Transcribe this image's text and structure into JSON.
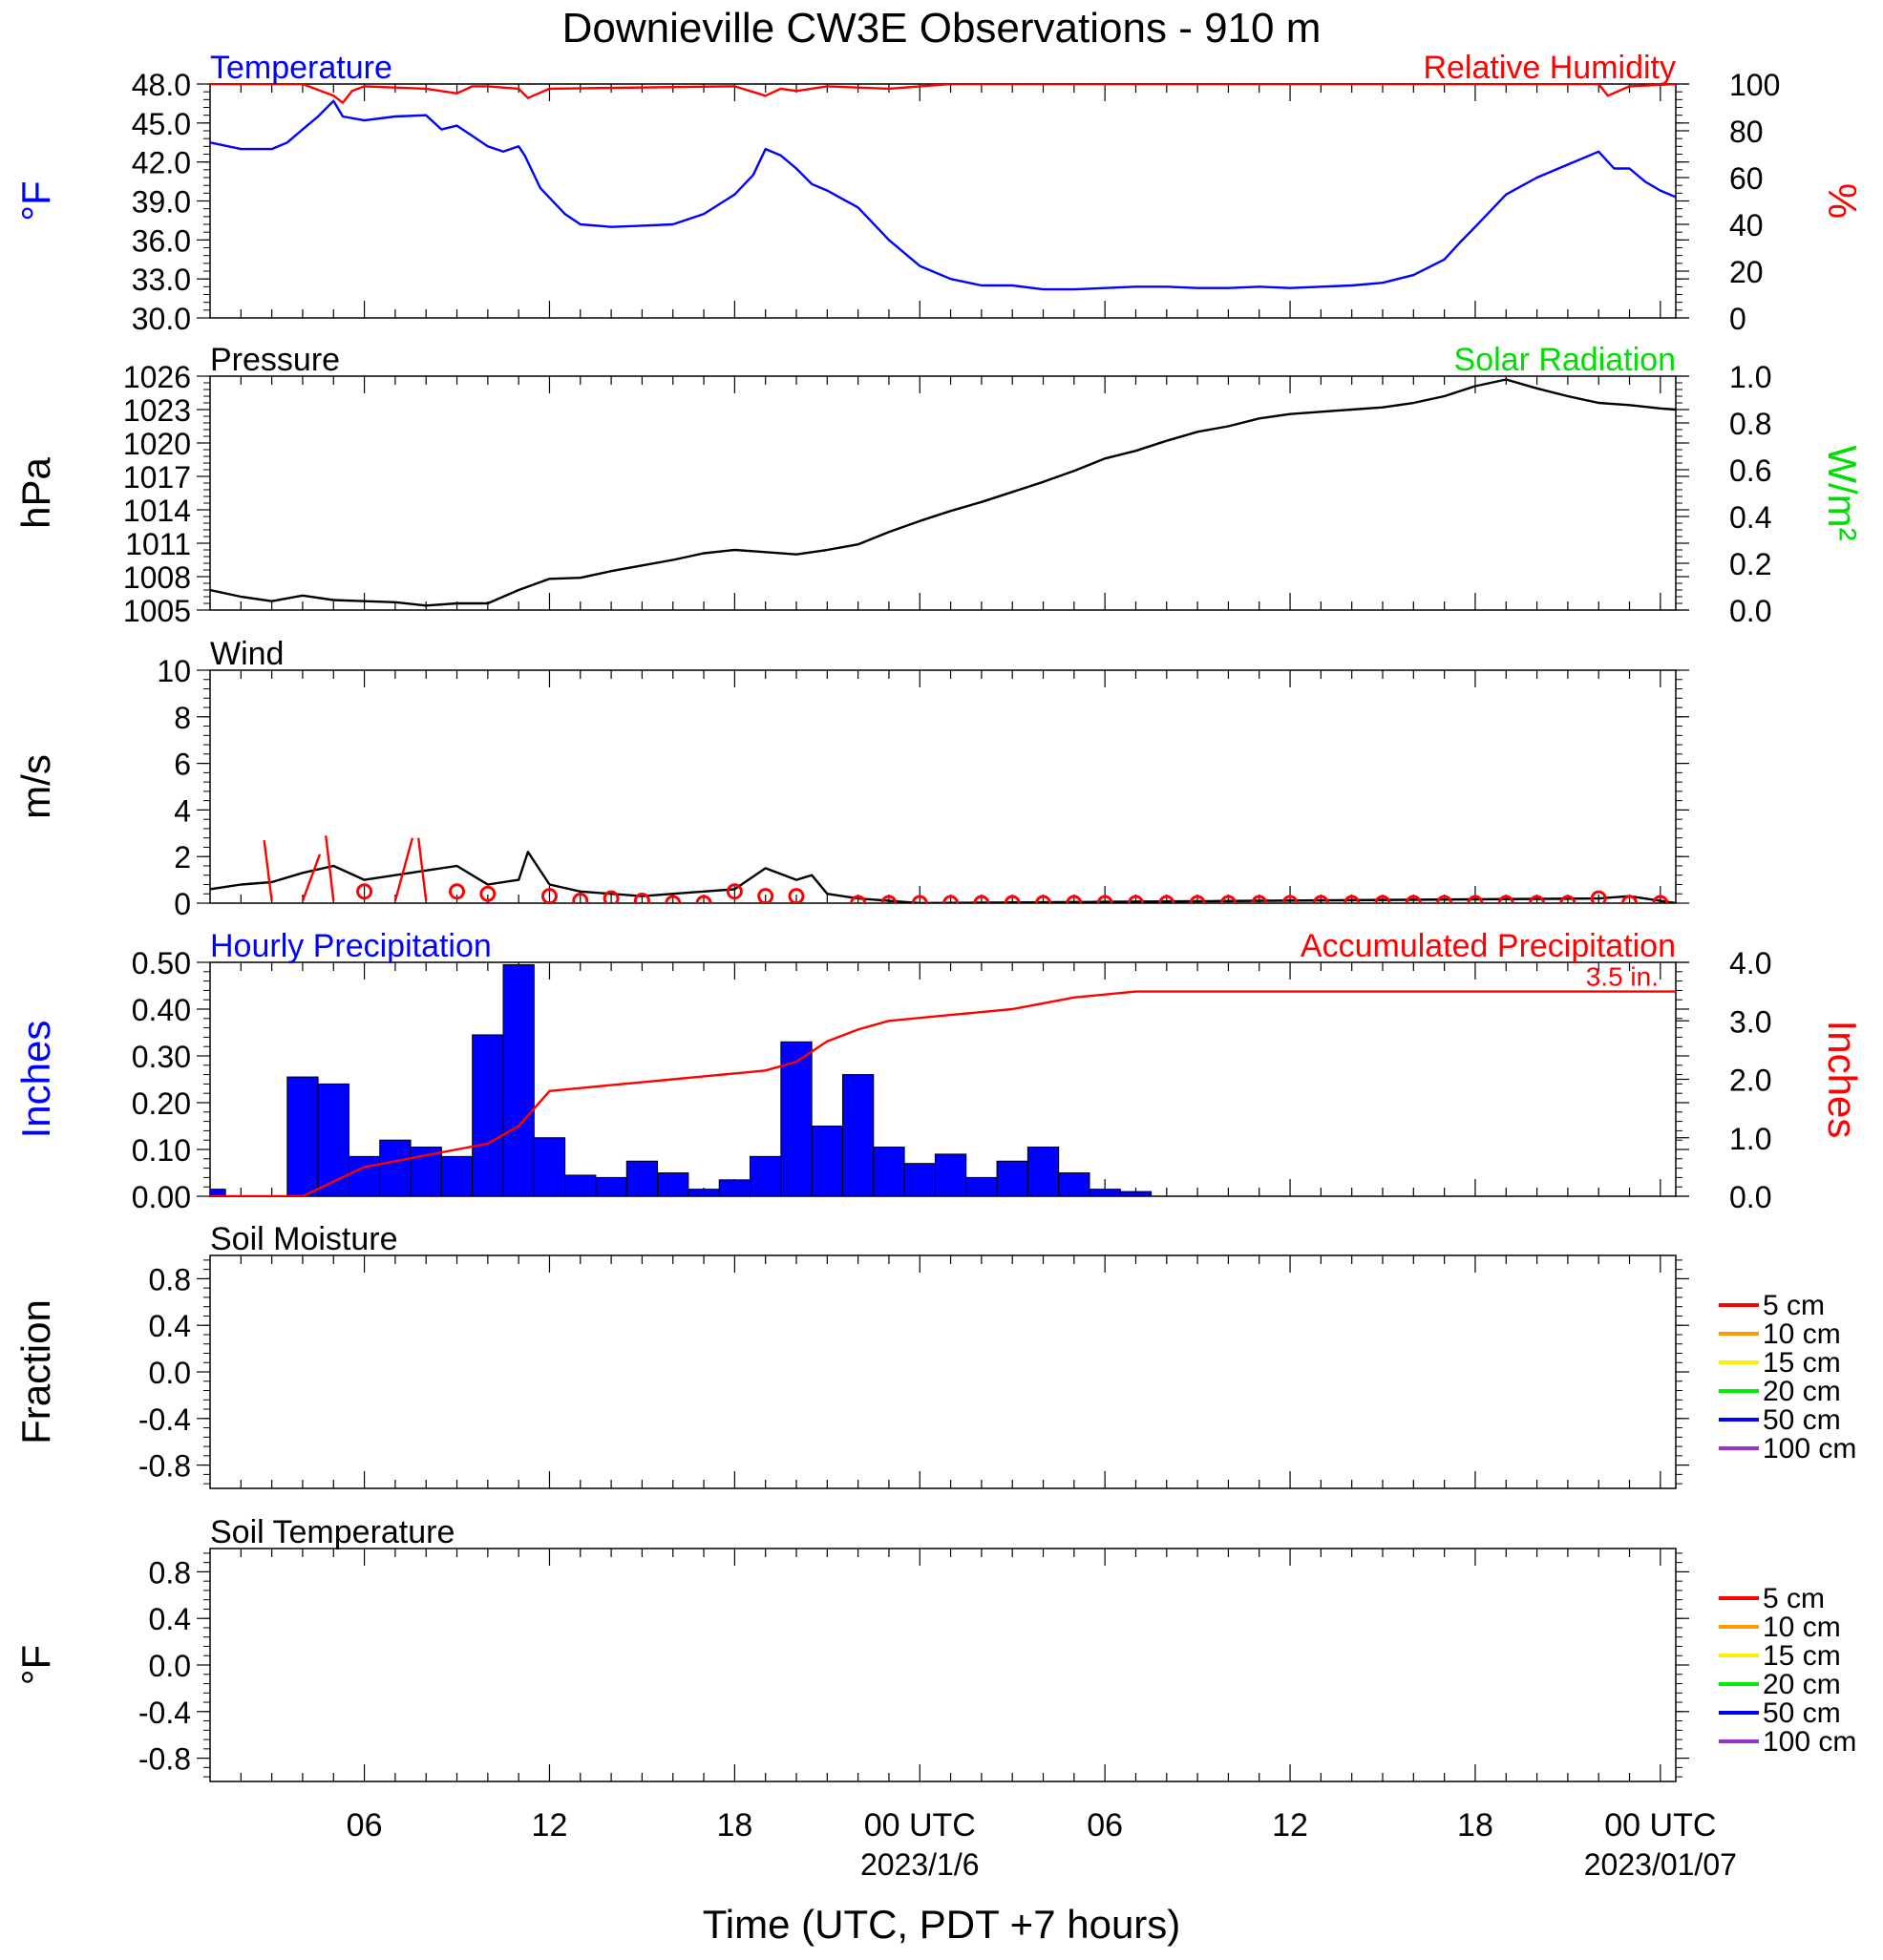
{
  "title": "Downieville CW3E Observations - 910 m",
  "colors": {
    "temperature": "#0000ff",
    "humidity": "#ff0000",
    "pressure": "#000000",
    "solar": "#00dd00",
    "precip_bar": "#0000ff",
    "accum": "#ff0000",
    "wind": "#000000",
    "wind_marker": "#ff0000"
  },
  "x_axis": {
    "title": "Time (UTC, PDT +7 hours)",
    "tick_labels": [
      {
        "hour": 6,
        "label": "06"
      },
      {
        "hour": 12,
        "label": "12"
      },
      {
        "hour": 18,
        "label": "18"
      },
      {
        "hour": 24,
        "label": "00 UTC",
        "sublabel": "2023/1/6"
      },
      {
        "hour": 30,
        "label": "06"
      },
      {
        "hour": 36,
        "label": "12"
      },
      {
        "hour": 42,
        "label": "18"
      },
      {
        "hour": 48,
        "label": "00 UTC",
        "sublabel": "2023/01/07"
      }
    ],
    "range_hours": [
      1,
      48.5
    ]
  },
  "chart_data": [
    {
      "type": "line",
      "panel": "temperature-humidity",
      "left_title": "Temperature",
      "right_title": "Relative Humidity",
      "ylabel_left": "°F",
      "ylabel_right": "%",
      "ylim_left": [
        30,
        48
      ],
      "ylim_right": [
        0,
        100
      ],
      "yticks_left": [
        "48.0",
        "45.0",
        "42.0",
        "39.0",
        "36.0",
        "33.0",
        "30.0"
      ],
      "yticks_right": [
        "100",
        "80",
        "60",
        "40",
        "20",
        "0"
      ],
      "series": [
        {
          "name": "Temperature",
          "axis": "left",
          "x": [
            1,
            2,
            3,
            3.5,
            4,
            4.5,
            5,
            5.3,
            6,
            7,
            8,
            8.5,
            9,
            9.5,
            10,
            10.5,
            11,
            11.2,
            11.7,
            12.5,
            13,
            14,
            15,
            16,
            17,
            18,
            18.6,
            19,
            19.5,
            20,
            20.5,
            21,
            22,
            23,
            24,
            25,
            26,
            27,
            28,
            29,
            30,
            31,
            32,
            33,
            34,
            35,
            36,
            37,
            38,
            39,
            40,
            41,
            41.5,
            42,
            43,
            44,
            45,
            46,
            46.5,
            47,
            47.5,
            48,
            48.5
          ],
          "values": [
            43.5,
            43.0,
            43.0,
            43.5,
            44.5,
            45.5,
            46.7,
            45.5,
            45.2,
            45.5,
            45.6,
            44.5,
            44.8,
            44.0,
            43.2,
            42.8,
            43.2,
            42.5,
            40.0,
            38.0,
            37.2,
            37.0,
            37.1,
            37.2,
            38.0,
            39.5,
            41.0,
            43.0,
            42.5,
            41.5,
            40.3,
            39.8,
            38.5,
            36.0,
            34.0,
            33.0,
            32.5,
            32.5,
            32.2,
            32.2,
            32.3,
            32.4,
            32.4,
            32.3,
            32.3,
            32.4,
            32.3,
            32.4,
            32.5,
            32.7,
            33.3,
            34.5,
            35.8,
            37.0,
            39.5,
            40.8,
            41.8,
            42.8,
            41.5,
            41.5,
            40.5,
            39.8,
            39.3
          ]
        },
        {
          "name": "Relative Humidity",
          "axis": "right",
          "x": [
            1,
            4,
            5,
            5.3,
            5.6,
            6,
            8,
            9,
            9.5,
            10,
            11,
            11.3,
            12,
            18,
            19,
            19.5,
            20,
            21,
            23,
            25,
            46,
            46.3,
            47,
            48.5
          ],
          "values": [
            100,
            100,
            95,
            92,
            97,
            99,
            98,
            96,
            99,
            99,
            98,
            94,
            98,
            99,
            95,
            98,
            97,
            99,
            98,
            100,
            100,
            95,
            99,
            100
          ]
        }
      ]
    },
    {
      "type": "line",
      "panel": "pressure-solar",
      "left_title": "Pressure",
      "right_title": "Solar Radiation",
      "ylabel_left": "hPa",
      "ylabel_right": "W/m²",
      "ylim_left": [
        1005,
        1026
      ],
      "ylim_right": [
        0,
        1
      ],
      "yticks_left": [
        "1026",
        "1023",
        "1020",
        "1017",
        "1014",
        "1011",
        "1008",
        "1005"
      ],
      "yticks_right": [
        "1.0",
        "0.8",
        "0.6",
        "0.4",
        "0.2",
        "0.0"
      ],
      "series": [
        {
          "name": "Pressure",
          "axis": "left",
          "x": [
            1,
            2,
            3,
            4,
            5,
            6,
            7,
            8,
            9,
            10,
            11,
            12,
            13,
            14,
            15,
            16,
            17,
            18,
            19,
            20,
            21,
            22,
            23,
            24,
            25,
            26,
            27,
            28,
            29,
            30,
            31,
            32,
            33,
            34,
            35,
            36,
            37,
            38,
            39,
            40,
            41,
            42,
            43,
            44,
            45,
            46,
            47,
            48,
            48.5
          ],
          "values": [
            1006.8,
            1006.2,
            1005.8,
            1006.3,
            1005.9,
            1005.8,
            1005.7,
            1005.4,
            1005.6,
            1005.6,
            1006.8,
            1007.8,
            1007.9,
            1008.5,
            1009.0,
            1009.5,
            1010.1,
            1010.4,
            1010.2,
            1010.0,
            1010.4,
            1010.9,
            1012.0,
            1013.0,
            1013.9,
            1014.7,
            1015.6,
            1016.5,
            1017.5,
            1018.6,
            1019.3,
            1020.2,
            1021.0,
            1021.5,
            1022.2,
            1022.6,
            1022.8,
            1023.0,
            1023.2,
            1023.6,
            1024.2,
            1025.1,
            1025.7,
            1024.9,
            1024.2,
            1023.6,
            1023.4,
            1023.1,
            1023.0
          ]
        }
      ]
    },
    {
      "type": "line",
      "panel": "wind",
      "left_title": "Wind",
      "ylabel_left": "m/s",
      "ylim_left": [
        0,
        10
      ],
      "yticks_left": [
        "10",
        "8",
        "6",
        "4",
        "2",
        "0"
      ],
      "series": [
        {
          "name": "Wind",
          "axis": "left",
          "x": [
            1,
            2,
            3,
            4,
            5,
            6,
            7,
            8,
            9,
            10,
            11,
            11.3,
            12,
            13,
            14,
            15,
            16,
            17,
            18,
            19,
            20,
            20.5,
            21,
            22,
            23,
            24,
            46,
            47,
            48,
            48.5
          ],
          "values": [
            0.6,
            0.8,
            0.9,
            1.3,
            1.6,
            1.0,
            1.2,
            1.4,
            1.6,
            0.8,
            1.0,
            2.2,
            0.8,
            0.5,
            0.4,
            0.3,
            0.4,
            0.5,
            0.6,
            1.5,
            1.0,
            1.2,
            0.4,
            0.2,
            0.1,
            0.0,
            0.2,
            0.3,
            0.1,
            0.0
          ]
        }
      ],
      "markers": {
        "x": [
          6,
          9,
          10,
          12,
          13,
          14,
          15,
          16,
          17,
          18,
          19,
          20,
          22,
          23,
          24,
          25,
          26,
          27,
          28,
          29,
          30,
          31,
          32,
          33,
          34,
          35,
          36,
          37,
          38,
          39,
          40,
          41,
          42,
          43,
          44,
          45,
          46,
          47,
          48
        ],
        "values": [
          0.5,
          0.5,
          0.4,
          0.3,
          0.1,
          0.2,
          0.1,
          0.0,
          0.0,
          0.5,
          0.3,
          0.3,
          0.0,
          0.0,
          0.0,
          0.0,
          0.0,
          0.0,
          0.0,
          0.0,
          0.0,
          0.0,
          0.0,
          0.0,
          0.0,
          0.0,
          0.0,
          0.0,
          0.0,
          0.0,
          0.0,
          0.0,
          0.0,
          0.0,
          0.0,
          0.0,
          0.2,
          0.0,
          0.0
        ]
      },
      "barbs": [
        {
          "x": 3,
          "speed": 2.7
        },
        {
          "x": 4,
          "speed": 2.1
        },
        {
          "x": 5,
          "speed": 2.9
        },
        {
          "x": 7,
          "speed": 2.8
        },
        {
          "x": 8,
          "speed": 2.8
        }
      ]
    },
    {
      "type": "bar",
      "panel": "precipitation",
      "left_title": "Hourly Precipitation",
      "right_title": "Accumulated Precipitation",
      "annotation": "3.5 in.",
      "ylabel_left": "Inches",
      "ylabel_right": "Inches",
      "ylim_left": [
        0,
        0.5
      ],
      "ylim_right": [
        0,
        4
      ],
      "yticks_left": [
        "0.50",
        "0.40",
        "0.30",
        "0.20",
        "0.10",
        "0.00"
      ],
      "yticks_right": [
        "4.0",
        "3.0",
        "2.0",
        "1.0",
        "0.0"
      ],
      "bars": {
        "hour": [
          1,
          2,
          3,
          4,
          5,
          6,
          7,
          8,
          9,
          10,
          11,
          12,
          13,
          14,
          15,
          16,
          17,
          18,
          19,
          20,
          21,
          22,
          23,
          24,
          25,
          26,
          27,
          28,
          29,
          30,
          31,
          32,
          33,
          34,
          35,
          36,
          37,
          38,
          39,
          40,
          41,
          42,
          43,
          44,
          45,
          46,
          47,
          48
        ],
        "values": [
          0.015,
          0.0,
          0.0,
          0.255,
          0.24,
          0.085,
          0.12,
          0.105,
          0.085,
          0.345,
          0.495,
          0.125,
          0.045,
          0.04,
          0.075,
          0.05,
          0.015,
          0.035,
          0.085,
          0.33,
          0.15,
          0.26,
          0.105,
          0.07,
          0.09,
          0.04,
          0.075,
          0.105,
          0.05,
          0.015,
          0.01,
          0.0,
          0.0,
          0.0,
          0.0,
          0.0,
          0.0,
          0.0,
          0.0,
          0.0,
          0.0,
          0.0,
          0.0,
          0.0,
          0.0,
          0.0,
          0.0,
          0.0
        ]
      },
      "series": [
        {
          "name": "Accumulated Precipitation",
          "axis": "right",
          "x": [
            1,
            4,
            5,
            6,
            7,
            8,
            9,
            10,
            11,
            12,
            13,
            14,
            15,
            16,
            17,
            18,
            19,
            20,
            21,
            22,
            23,
            24,
            25,
            26,
            27,
            28,
            29,
            30,
            31,
            32,
            40,
            48.5
          ],
          "values": [
            0.0,
            0.0,
            0.25,
            0.5,
            0.6,
            0.7,
            0.8,
            0.9,
            1.2,
            1.8,
            1.85,
            1.9,
            1.95,
            2.0,
            2.05,
            2.1,
            2.15,
            2.3,
            2.65,
            2.85,
            3.0,
            3.05,
            3.1,
            3.15,
            3.2,
            3.3,
            3.4,
            3.45,
            3.5,
            3.5,
            3.5,
            3.5
          ]
        }
      ]
    },
    {
      "type": "line",
      "panel": "soil-moisture",
      "left_title": "Soil Moisture",
      "ylabel_left": "Fraction",
      "ylim_left": [
        -1,
        1
      ],
      "yticks_left": [
        "0.8",
        "0.4",
        "0.0",
        "-0.4",
        "-0.8"
      ],
      "legend": [
        {
          "label": "5 cm",
          "color": "#ff0000"
        },
        {
          "label": "10 cm",
          "color": "#ff9900"
        },
        {
          "label": "15 cm",
          "color": "#ffee00"
        },
        {
          "label": "20 cm",
          "color": "#00ee00"
        },
        {
          "label": "50 cm",
          "color": "#0000ff"
        },
        {
          "label": "100 cm",
          "color": "#9933cc"
        }
      ],
      "series": []
    },
    {
      "type": "line",
      "panel": "soil-temperature",
      "left_title": "Soil Temperature",
      "ylabel_left": "°F",
      "ylim_left": [
        -1,
        1
      ],
      "yticks_left": [
        "0.8",
        "0.4",
        "0.0",
        "-0.4",
        "-0.8"
      ],
      "legend": [
        {
          "label": "5 cm",
          "color": "#ff0000"
        },
        {
          "label": "10 cm",
          "color": "#ff9900"
        },
        {
          "label": "15 cm",
          "color": "#ffee00"
        },
        {
          "label": "20 cm",
          "color": "#00ee00"
        },
        {
          "label": "50 cm",
          "color": "#0000ff"
        },
        {
          "label": "100 cm",
          "color": "#9933cc"
        }
      ],
      "series": []
    }
  ]
}
